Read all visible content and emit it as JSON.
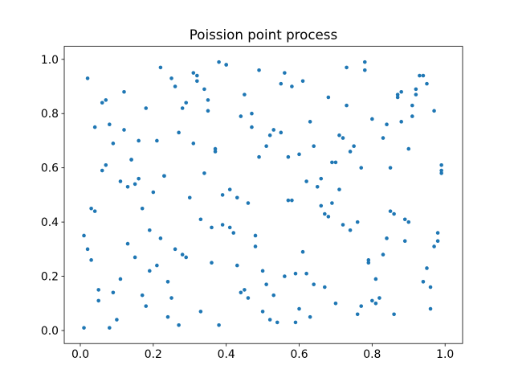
{
  "chart_data": {
    "type": "scatter",
    "title": "Poission point process",
    "color": "#1f77b4",
    "xlim": [
      -0.044,
      1.048
    ],
    "ylim": [
      -0.048,
      1.048
    ],
    "xticks": [
      {
        "value": 0,
        "label": "0.0"
      },
      0.2,
      0.4,
      0.6,
      0.8,
      {
        "value": 1,
        "label": "1.0"
      }
    ],
    "yticks": [
      {
        "value": 0,
        "label": "0.0"
      },
      0.2,
      0.4,
      0.6,
      0.8,
      {
        "value": 1,
        "label": "1.0"
      }
    ],
    "x": [
      0.03,
      0.12,
      0.25,
      0.37,
      0.48,
      0.56,
      0.63,
      0.71,
      0.84,
      0.95,
      0.07,
      0.18,
      0.29,
      0.41,
      0.52,
      0.67,
      0.78,
      0.89,
      0.99,
      0.15,
      0.02,
      0.22,
      0.33,
      0.44,
      0.58,
      0.69,
      0.81,
      0.92,
      0.05,
      0.11,
      0.27,
      0.38,
      0.49,
      0.61,
      0.74,
      0.86,
      0.97,
      0.09,
      0.19,
      0.31,
      0.43,
      0.55,
      0.65,
      0.76,
      0.88,
      0.01,
      0.14,
      0.24,
      0.35,
      0.46,
      0.59,
      0.72,
      0.83,
      0.94,
      0.06,
      0.17,
      0.28,
      0.39,
      0.51,
      0.62,
      0.73,
      0.85,
      0.96,
      0.04,
      0.13,
      0.23,
      0.34,
      0.45,
      0.57,
      0.68,
      0.79,
      0.91,
      0.08,
      0.2,
      0.32,
      0.42,
      0.53,
      0.64,
      0.77,
      0.87,
      0.98,
      0.1,
      0.21,
      0.3,
      0.4,
      0.5,
      0.6,
      0.7,
      0.8,
      0.9,
      0.16,
      0.26,
      0.36,
      0.47,
      0.54,
      0.66,
      0.75,
      0.82,
      0.93,
      0.02,
      0.12,
      0.24,
      0.34,
      0.45,
      0.56,
      0.67,
      0.78,
      0.89,
      0.99,
      0.05,
      0.18,
      0.29,
      0.39,
      0.5,
      0.61,
      0.72,
      0.83,
      0.94,
      0.07,
      0.15,
      0.27,
      0.37,
      0.48,
      0.58,
      0.69,
      0.8,
      0.91,
      0.03,
      0.14,
      0.22,
      0.33,
      0.44,
      0.55,
      0.66,
      0.77,
      0.88,
      0.97,
      0.09,
      0.19,
      0.31,
      0.41,
      0.52,
      0.63,
      0.74,
      0.85,
      0.96,
      0.06,
      0.17,
      0.28,
      0.38,
      0.49,
      0.6,
      0.71,
      0.84,
      0.95,
      0.11,
      0.23,
      0.35,
      0.46,
      0.57,
      0.68,
      0.79,
      0.9,
      0.01,
      0.13,
      0.25,
      0.36,
      0.47,
      0.59,
      0.7,
      0.81,
      0.92,
      0.04,
      0.16,
      0.26,
      0.4,
      0.51,
      0.62,
      0.73,
      0.86,
      0.98,
      0.08,
      0.21,
      0.32,
      0.43,
      0.53,
      0.64,
      0.76,
      0.87,
      0.99
    ],
    "y": [
      0.45,
      0.88,
      0.12,
      0.67,
      0.31,
      0.95,
      0.05,
      0.52,
      0.76,
      0.23,
      0.61,
      0.09,
      0.84,
      0.38,
      0.72,
      0.16,
      0.99,
      0.41,
      0.58,
      0.27,
      0.93,
      0.34,
      0.07,
      0.79,
      0.48,
      0.62,
      0.19,
      0.87,
      0.11,
      0.55,
      0.73,
      0.02,
      0.96,
      0.29,
      0.66,
      0.43,
      0.81,
      0.14,
      0.37,
      0.69,
      0.24,
      0.91,
      0.53,
      0.06,
      0.77,
      0.35,
      0.63,
      0.18,
      0.85,
      0.47,
      0.03,
      0.71,
      0.28,
      0.94,
      0.59,
      0.13,
      0.82,
      0.39,
      0.68,
      0.21,
      0.97,
      0.44,
      0.08,
      0.75,
      0.32,
      0.57,
      0.89,
      0.15,
      0.64,
      0.42,
      0.26,
      0.83,
      0.01,
      0.51,
      0.92,
      0.36,
      0.74,
      0.17,
      0.6,
      0.86,
      0.33,
      0.04,
      0.7,
      0.49,
      0.98,
      0.22,
      0.65,
      0.1,
      0.78,
      0.4,
      0.56,
      0.9,
      0.25,
      0.8,
      0.03,
      0.46,
      0.68,
      0.12,
      0.94,
      0.3,
      0.74,
      0.05,
      0.58,
      0.87,
      0.2,
      0.43,
      0.96,
      0.33,
      0.61,
      0.15,
      0.82,
      0.27,
      0.5,
      0.07,
      0.92,
      0.39,
      0.71,
      0.18,
      0.85,
      0.54,
      0.02,
      0.66,
      0.35,
      0.9,
      0.47,
      0.11,
      0.79,
      0.26,
      0.63,
      0.97,
      0.41,
      0.14,
      0.73,
      0.56,
      0.09,
      0.88,
      0.31,
      0.69,
      0.22,
      0.95,
      0.52,
      0.04,
      0.77,
      0.37,
      0.6,
      0.16,
      0.84,
      0.45,
      0.28,
      0.99,
      0.64,
      0.08,
      0.72,
      0.34,
      0.91,
      0.19,
      0.57,
      0.81,
      0.12,
      0.48,
      0.86,
      0.25,
      0.67,
      0.01,
      0.53,
      0.93,
      0.38,
      0.75,
      0.21,
      0.62,
      0.1,
      0.89,
      0.44,
      0.7,
      0.3,
      0.98,
      0.17,
      0.55,
      0.83,
      0.06,
      0.36,
      0.76,
      0.24,
      0.94,
      0.49,
      0.13,
      0.68,
      0.4,
      0.87,
      0.59
    ]
  }
}
